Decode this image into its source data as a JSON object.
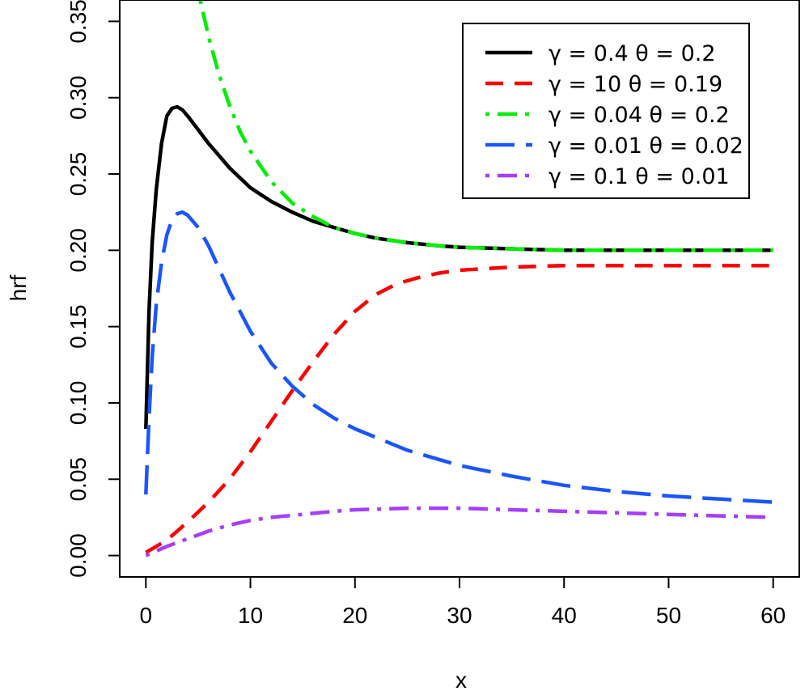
{
  "chart_data": {
    "type": "line",
    "xlabel": "x",
    "ylabel": "hrf",
    "xlim": [
      -2.5,
      62.5
    ],
    "ylim": [
      -0.014,
      0.364
    ],
    "xticks": [
      0,
      10,
      20,
      30,
      40,
      50,
      60
    ],
    "xtick_labels": [
      "0",
      "10",
      "20",
      "30",
      "40",
      "50",
      "60"
    ],
    "yticks": [
      0,
      0.05,
      0.1,
      0.15,
      0.2,
      0.25,
      0.3,
      0.35
    ],
    "ytick_labels": [
      "0.00",
      "0.05",
      "0.10",
      "0.15",
      "0.20",
      "0.25",
      "0.30",
      "0.35"
    ],
    "grid": false,
    "legend_position": "top-right",
    "series": [
      {
        "name": "γ = 0.4  θ = 0.2",
        "color": "#000000",
        "dash": "solid",
        "x": [
          0,
          0.3,
          0.6,
          1,
          1.5,
          2,
          2.5,
          3,
          3.5,
          4,
          5,
          6,
          7,
          8,
          10,
          12,
          14,
          16,
          18,
          20,
          22,
          25,
          28,
          30,
          35,
          40,
          50,
          60
        ],
        "y": [
          0.083,
          0.16,
          0.205,
          0.24,
          0.27,
          0.288,
          0.293,
          0.294,
          0.292,
          0.288,
          0.279,
          0.27,
          0.262,
          0.254,
          0.241,
          0.232,
          0.225,
          0.219,
          0.215,
          0.211,
          0.208,
          0.205,
          0.203,
          0.202,
          0.201,
          0.2,
          0.2,
          0.2
        ]
      },
      {
        "name": "γ = 10  θ = 0.19",
        "color": "#ff0000",
        "dash": "dashed",
        "x": [
          0,
          2,
          4,
          6,
          8,
          10,
          12,
          14,
          16,
          18,
          20,
          22,
          24,
          26,
          28,
          30,
          35,
          40,
          50,
          60
        ],
        "y": [
          0.002,
          0.01,
          0.022,
          0.035,
          0.05,
          0.068,
          0.088,
          0.108,
          0.127,
          0.145,
          0.16,
          0.171,
          0.178,
          0.182,
          0.185,
          0.187,
          0.189,
          0.19,
          0.19,
          0.19
        ]
      },
      {
        "name": "γ = 0.04  θ = 0.2",
        "color": "#00ee00",
        "dash": "dotdash",
        "x": [
          5.2,
          6,
          7,
          8,
          9,
          10,
          12,
          14,
          16,
          18,
          20,
          22,
          25,
          28,
          30,
          35,
          40,
          50,
          60
        ],
        "y": [
          0.364,
          0.34,
          0.315,
          0.295,
          0.278,
          0.265,
          0.245,
          0.231,
          0.222,
          0.215,
          0.211,
          0.208,
          0.205,
          0.203,
          0.202,
          0.201,
          0.2,
          0.2,
          0.2
        ]
      },
      {
        "name": "γ = 0.01  θ = 0.02",
        "color": "#1a56ff",
        "dash": "longdash",
        "x": [
          0,
          0.3,
          0.6,
          1,
          1.5,
          2,
          2.5,
          3,
          3.5,
          4,
          5,
          6,
          7,
          8,
          10,
          12,
          14,
          16,
          18,
          20,
          25,
          30,
          35,
          40,
          45,
          50,
          55,
          60
        ],
        "y": [
          0.04,
          0.09,
          0.13,
          0.165,
          0.192,
          0.21,
          0.22,
          0.224,
          0.225,
          0.223,
          0.215,
          0.203,
          0.188,
          0.173,
          0.147,
          0.126,
          0.111,
          0.099,
          0.09,
          0.083,
          0.069,
          0.059,
          0.052,
          0.046,
          0.042,
          0.039,
          0.037,
          0.035
        ]
      },
      {
        "name": "γ = 0.1  θ = 0.01",
        "color": "#a63dff",
        "dash": "dotdash",
        "x": [
          0,
          2,
          4,
          6,
          8,
          10,
          12,
          15,
          18,
          20,
          25,
          30,
          35,
          40,
          45,
          50,
          55,
          60
        ],
        "y": [
          0,
          0.006,
          0.011,
          0.016,
          0.02,
          0.023,
          0.025,
          0.027,
          0.029,
          0.03,
          0.031,
          0.031,
          0.03,
          0.029,
          0.028,
          0.027,
          0.026,
          0.025
        ]
      }
    ]
  }
}
